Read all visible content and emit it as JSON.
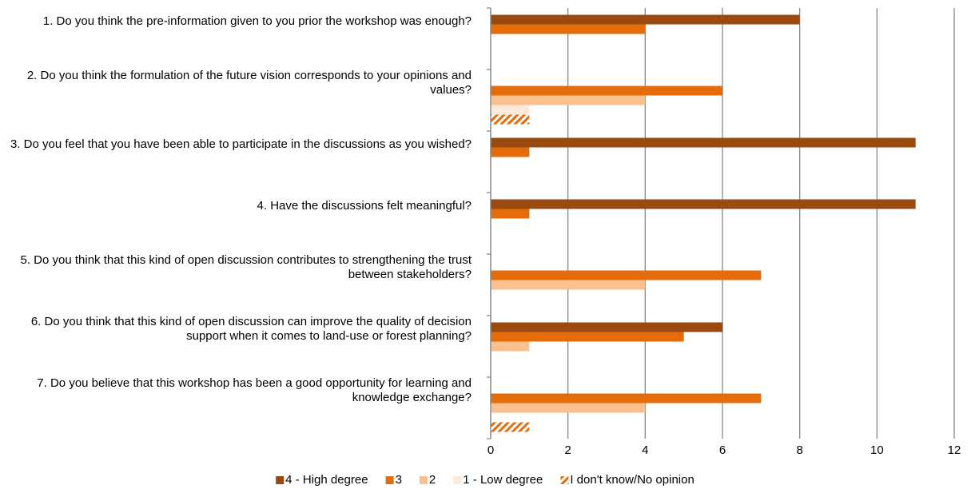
{
  "chart_data": {
    "type": "barh",
    "categories": [
      "1. Do you think the pre-information given to you prior the workshop was enough?",
      "2. Do you think the formulation of the future vision corresponds to your opinions and values?",
      "3. Do you feel that you have been able to participate in the discussions as you wished?",
      "4. Have the discussions felt meaningful?",
      "5. Do you think that this kind of open discussion contributes to strengthening the trust between stakeholders?",
      "6. Do you think that this kind of open discussion can improve the quality of decision support when it comes to land-use or forest planning?",
      "7. Do you believe that this workshop has been a good opportunity for learning and knowledge exchange?"
    ],
    "series": [
      {
        "name": "4 - High degree",
        "color": "#9a4a0e",
        "values": [
          8,
          0,
          11,
          11,
          0,
          6,
          0
        ]
      },
      {
        "name": "3",
        "color": "#e46c0a",
        "values": [
          4,
          6,
          1,
          1,
          7,
          5,
          7
        ]
      },
      {
        "name": "2",
        "color": "#fac090",
        "values": [
          0,
          4,
          0,
          0,
          4,
          1,
          4
        ]
      },
      {
        "name": "1 - Low degree",
        "color": "#fde9d9",
        "values": [
          0,
          1,
          0,
          0,
          0,
          0,
          0
        ]
      },
      {
        "name": "I don't know/No opinion",
        "color": "#e46c0a",
        "pattern": "hatch",
        "values": [
          0,
          1,
          0,
          0,
          0,
          0,
          1
        ]
      }
    ],
    "xlim": [
      0,
      12
    ],
    "xticks": [
      0,
      2,
      4,
      6,
      8,
      10,
      12
    ],
    "grid": true,
    "legend": "bottom"
  }
}
